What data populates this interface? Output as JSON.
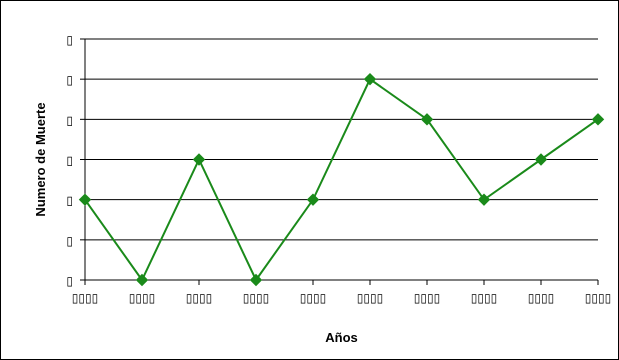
{
  "chart_data": {
    "type": "line",
    "title": "",
    "xlabel": "Años",
    "ylabel": "Numero de Muerte",
    "categories": [
      "▯▯▯▯",
      "▯▯▯▯",
      "▯▯▯▯",
      "▯▯▯▯",
      "▯▯▯▯",
      "▯▯▯▯",
      "▯▯▯▯",
      "▯▯▯▯",
      "▯▯▯▯",
      "▯▯▯▯"
    ],
    "y_tick_labels": [
      "▯",
      "▯",
      "▯",
      "▯",
      "▯",
      "▯",
      "▯"
    ],
    "ylim": [
      0,
      6
    ],
    "grid": true,
    "legend": "none",
    "series": [
      {
        "values": [
          2,
          0,
          3,
          0,
          2,
          5,
          4,
          2,
          3,
          4
        ]
      }
    ],
    "colors": {
      "series": "#1a8a1a",
      "marker": "#1a8a1a",
      "grid": "#000000",
      "axis": "#000000",
      "background": "#ffffff"
    },
    "marker_icon": "diamond-marker"
  }
}
